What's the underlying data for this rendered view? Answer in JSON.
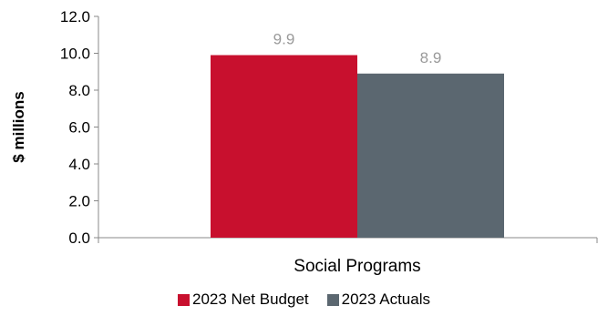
{
  "chart_data": {
    "type": "bar",
    "categories": [
      "Social Programs"
    ],
    "series": [
      {
        "name": "2023 Net Budget",
        "values": [
          9.9
        ],
        "color": "#c8102e"
      },
      {
        "name": "2023 Actuals",
        "values": [
          8.9
        ],
        "color": "#5b6770"
      }
    ],
    "ylabel": "$ millions",
    "xlabel": "",
    "ylim": [
      0,
      12
    ],
    "yticks": [
      "0.0",
      "2.0",
      "4.0",
      "6.0",
      "8.0",
      "10.0",
      "12.0"
    ],
    "data_labels": [
      "9.9",
      "8.9"
    ],
    "legend_position": "bottom",
    "grid": false
  }
}
